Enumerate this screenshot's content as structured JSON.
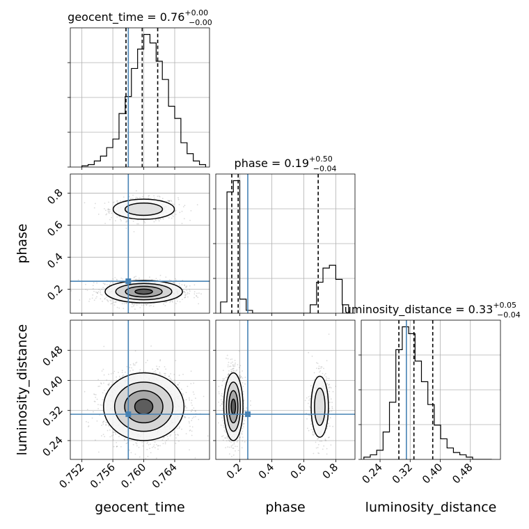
{
  "chart_data": {
    "type": "corner",
    "parameters": [
      "geocent_time",
      "phase",
      "luminosity_distance"
    ],
    "truths": {
      "geocent_time": 0.758,
      "phase": 0.25,
      "luminosity_distance": 0.31
    },
    "diagonal": [
      {
        "parameter": "geocent_time",
        "title": {
          "prefix": "geocent_time = 0.76",
          "plus": "+0.00",
          "minus": "−0.00"
        },
        "range": [
          0.7505,
          0.7685
        ],
        "bins_low": 0.752,
        "bin_width": 0.0008,
        "counts": [
          1,
          2,
          5,
          9,
          16,
          23,
          44,
          58,
          81,
          97,
          109,
          102,
          87,
          72,
          50,
          40,
          20,
          11,
          5,
          2
        ],
        "quantiles": [
          0.7577,
          0.7598,
          0.7618
        ],
        "xticks": [
          0.752,
          0.756,
          0.76,
          0.764
        ],
        "xticklabels": [
          "0.752",
          "0.756",
          "0.760",
          "0.764"
        ]
      },
      {
        "parameter": "phase",
        "title": {
          "prefix": "phase = 0.19",
          "plus": "+0.50",
          "minus": "−0.04"
        },
        "range": [
          0.05,
          0.92
        ],
        "bins_low": 0.08,
        "bin_width": 0.04,
        "counts": [
          4,
          43,
          47,
          5,
          1,
          0,
          0,
          0,
          0,
          0,
          0,
          0,
          0,
          0,
          3,
          11,
          16,
          17,
          12,
          3
        ],
        "quantiles": [
          0.15,
          0.19,
          0.69
        ],
        "xticks": [
          0.2,
          0.4,
          0.6,
          0.8
        ],
        "xticklabels": [
          "0.2",
          "0.4",
          "0.6",
          "0.8"
        ],
        "yticks": [
          0.2,
          0.4,
          0.6,
          0.8
        ],
        "yticklabels": [
          "0.2",
          "0.4",
          "0.6",
          "0.8"
        ]
      },
      {
        "parameter": "luminosity_distance",
        "title": {
          "prefix": "luminosity_distance = 0.33",
          "plus": "+0.05",
          "minus": "−0.04"
        },
        "range": [
          0.19,
          0.56
        ],
        "bins_low": 0.197,
        "bin_width": 0.017,
        "counts": [
          1,
          2,
          4,
          12,
          25,
          48,
          58,
          55,
          43,
          34,
          24,
          15,
          9,
          5,
          3,
          2,
          1,
          0,
          0,
          0
        ],
        "quantiles": [
          0.29,
          0.33,
          0.38
        ],
        "xticks": [
          0.24,
          0.32,
          0.4,
          0.48
        ],
        "xticklabels": [
          "0.24",
          "0.32",
          "0.40",
          "0.48"
        ],
        "yticks": [
          0.24,
          0.32,
          0.4,
          0.48
        ],
        "yticklabels": [
          "0.24",
          "0.32",
          "0.40",
          "0.48"
        ]
      }
    ],
    "scatter_blobs": [
      {
        "pair": [
          "geocent_time",
          "phase"
        ],
        "cx": 0.76,
        "cy": 0.7,
        "sx": 0.0022,
        "sy": 0.035,
        "n": 600
      },
      {
        "pair": [
          "geocent_time",
          "phase"
        ],
        "cx": 0.76,
        "cy": 0.185,
        "sx": 0.0025,
        "sy": 0.035,
        "n": 1400
      },
      {
        "pair": [
          "geocent_time",
          "luminosity_distance"
        ],
        "cx": 0.76,
        "cy": 0.33,
        "sx": 0.0026,
        "sy": 0.045,
        "n": 2000
      },
      {
        "pair": [
          "phase",
          "luminosity_distance"
        ],
        "cx": 0.16,
        "cy": 0.33,
        "sx": 0.03,
        "sy": 0.045,
        "n": 1400
      },
      {
        "pair": [
          "phase",
          "luminosity_distance"
        ],
        "cx": 0.7,
        "cy": 0.33,
        "sx": 0.03,
        "sy": 0.045,
        "n": 600
      }
    ],
    "contour_levels": [
      0.2,
      0.4,
      0.6,
      0.8
    ]
  }
}
